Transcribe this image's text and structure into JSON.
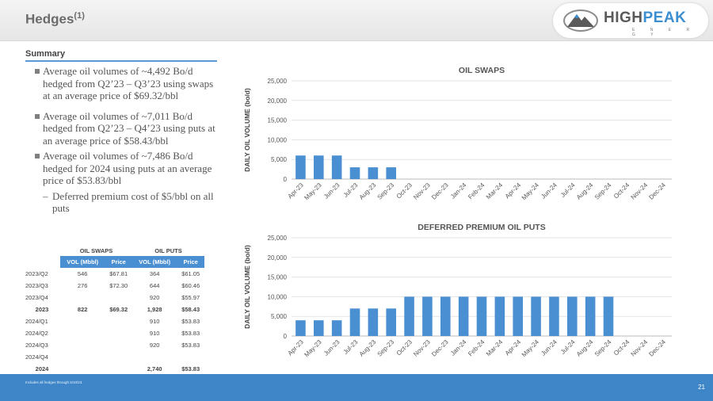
{
  "header": {
    "title": "Hedges",
    "title_sup": "(1)",
    "logo": {
      "name_a": "HIGH",
      "name_b": "PEAK",
      "sub": "E N E R G Y",
      "accent": "#3b8ed0"
    }
  },
  "summary": {
    "heading": "Summary",
    "bullets": [
      "Average oil volumes of ~4,492 Bo/d hedged from Q2’23 – Q3’23 using swaps at an average price of $69.32/bbl",
      "Average oil volumes of ~7,011 Bo/d hedged from Q2’23 – Q4’23 using puts at an average price of $58.43/bbl",
      "Average oil volumes of ~7,486 Bo/d hedged for 2024 using puts at an average price of $53.83/bbl"
    ],
    "sub_bullet": "Deferred premium cost of $5/bbl on all puts"
  },
  "table": {
    "group_headers": [
      "OIL SWAPS",
      "OIL PUTS"
    ],
    "columns": [
      "VOL (Mbbl)",
      "Price",
      "VOL (Mbbl)",
      "Price"
    ],
    "rows": [
      {
        "period": "2023/Q2",
        "swap_vol": "546",
        "swap_price": "$67.81",
        "put_vol": "364",
        "put_price": "$61.05",
        "total": false
      },
      {
        "period": "2023/Q3",
        "swap_vol": "276",
        "swap_price": "$72.30",
        "put_vol": "644",
        "put_price": "$60.46",
        "total": false
      },
      {
        "period": "2023/Q4",
        "swap_vol": "",
        "swap_price": "",
        "put_vol": "920",
        "put_price": "$55.97",
        "total": false
      },
      {
        "period": "2023",
        "swap_vol": "822",
        "swap_price": "$69.32",
        "put_vol": "1,928",
        "put_price": "$58.43",
        "total": true
      },
      {
        "period": "2024/Q1",
        "swap_vol": "",
        "swap_price": "",
        "put_vol": "910",
        "put_price": "$53.83",
        "total": false
      },
      {
        "period": "2024/Q2",
        "swap_vol": "",
        "swap_price": "",
        "put_vol": "910",
        "put_price": "$53.83",
        "total": false
      },
      {
        "period": "2024/Q3",
        "swap_vol": "",
        "swap_price": "",
        "put_vol": "920",
        "put_price": "$53.83",
        "total": false
      },
      {
        "period": "2024/Q4",
        "swap_vol": "",
        "swap_price": "",
        "put_vol": "",
        "put_price": "",
        "total": false
      },
      {
        "period": "2024",
        "swap_vol": "",
        "swap_price": "",
        "put_vol": "2,740",
        "put_price": "$53.83",
        "total": true
      }
    ]
  },
  "chart_data": [
    {
      "type": "bar",
      "title": "OIL SWAPS",
      "ylabel": "DAILY OIL VOLUME (bo/d)",
      "xlabel": "",
      "ylim": [
        0,
        25000
      ],
      "yticks": [
        0,
        5000,
        10000,
        15000,
        20000,
        25000
      ],
      "ytick_labels": [
        "0",
        "5,000",
        "10,000",
        "15,000",
        "20,000",
        "25,000"
      ],
      "grid": true,
      "color": "#4a8fd1",
      "categories": [
        "Apr-23",
        "May-23",
        "Jun-23",
        "Jul-23",
        "Aug-23",
        "Sep-23",
        "Oct-23",
        "Nov-23",
        "Dec-23",
        "Jan-24",
        "Feb-24",
        "Mar-24",
        "Apr-24",
        "May-24",
        "Jun-24",
        "Jul-24",
        "Aug-24",
        "Sep-24",
        "Oct-24",
        "Nov-24",
        "Dec-24"
      ],
      "values": [
        6000,
        6000,
        6000,
        3000,
        3000,
        3000,
        0,
        0,
        0,
        0,
        0,
        0,
        0,
        0,
        0,
        0,
        0,
        0,
        0,
        0,
        0
      ]
    },
    {
      "type": "bar",
      "title": "DEFERRED PREMIUM OIL PUTS",
      "ylabel": "DAILY OIL VOLUME (bo/d)",
      "xlabel": "",
      "ylim": [
        0,
        25000
      ],
      "yticks": [
        0,
        5000,
        10000,
        15000,
        20000,
        25000
      ],
      "ytick_labels": [
        "0",
        "5,000",
        "10,000",
        "15,000",
        "20,000",
        "25,000"
      ],
      "grid": true,
      "color": "#4a8fd1",
      "categories": [
        "Apr-23",
        "May-23",
        "Jun-23",
        "Jul-23",
        "Aug-23",
        "Sep-23",
        "Oct-23",
        "Nov-23",
        "Dec-23",
        "Jan-24",
        "Feb-24",
        "Mar-24",
        "Apr-24",
        "May-24",
        "Jun-24",
        "Jul-24",
        "Aug-24",
        "Sep-24",
        "Oct-24",
        "Nov-24",
        "Dec-24"
      ],
      "values": [
        4000,
        4000,
        4000,
        7000,
        7000,
        7000,
        10000,
        10000,
        10000,
        10000,
        10000,
        10000,
        10000,
        10000,
        10000,
        10000,
        10000,
        10000,
        0,
        0,
        0
      ]
    }
  ],
  "footer": {
    "footnote": "Includes all hedges through 5/10/23.",
    "page_number": "21"
  }
}
